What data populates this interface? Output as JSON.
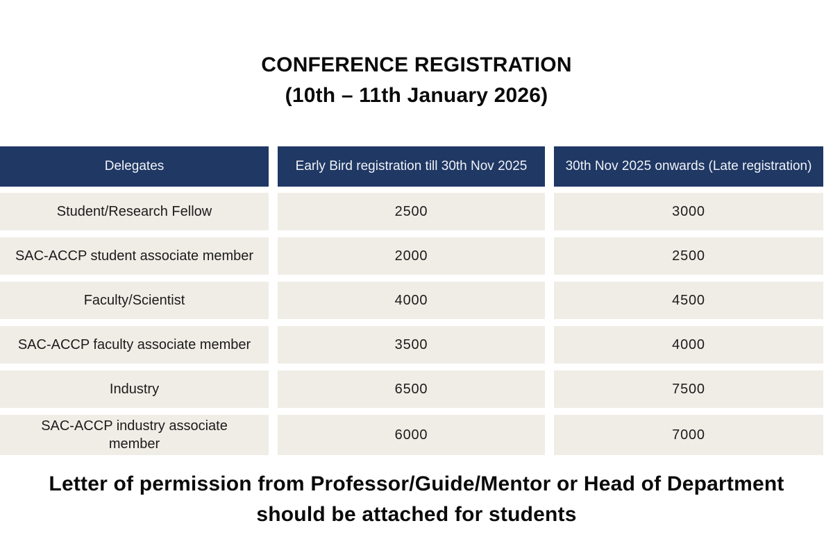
{
  "title": {
    "line1": "CONFERENCE REGISTRATION",
    "line2": "(10th – 11th January 2026)"
  },
  "table": {
    "columns": [
      "Delegates",
      "Early Bird registration till 30th Nov 2025",
      "30th Nov 2025 onwards (Late registration)"
    ],
    "rows": [
      {
        "delegate": "Student/Research Fellow",
        "early_bird": "2500",
        "late": "3000"
      },
      {
        "delegate": "SAC-ACCP student associate member",
        "early_bird": "2000",
        "late": "2500"
      },
      {
        "delegate": "Faculty/Scientist",
        "early_bird": "4000",
        "late": "4500"
      },
      {
        "delegate": "SAC-ACCP faculty associate member",
        "early_bird": "3500",
        "late": "4000"
      },
      {
        "delegate": "Industry",
        "early_bird": "6500",
        "late": "7500"
      },
      {
        "delegate": "SAC-ACCP industry associate member",
        "early_bird": "6000",
        "late": "7000"
      }
    ]
  },
  "footer": {
    "note": "Letter of permission from Professor/Guide/Mentor or Head of Department should be attached for students"
  },
  "colors": {
    "header_background": "#1f3864",
    "header_text": "#f0f2f7",
    "cell_background": "#f0ede6",
    "body_text": "#1b1b1b",
    "page_background": "#ffffff"
  }
}
